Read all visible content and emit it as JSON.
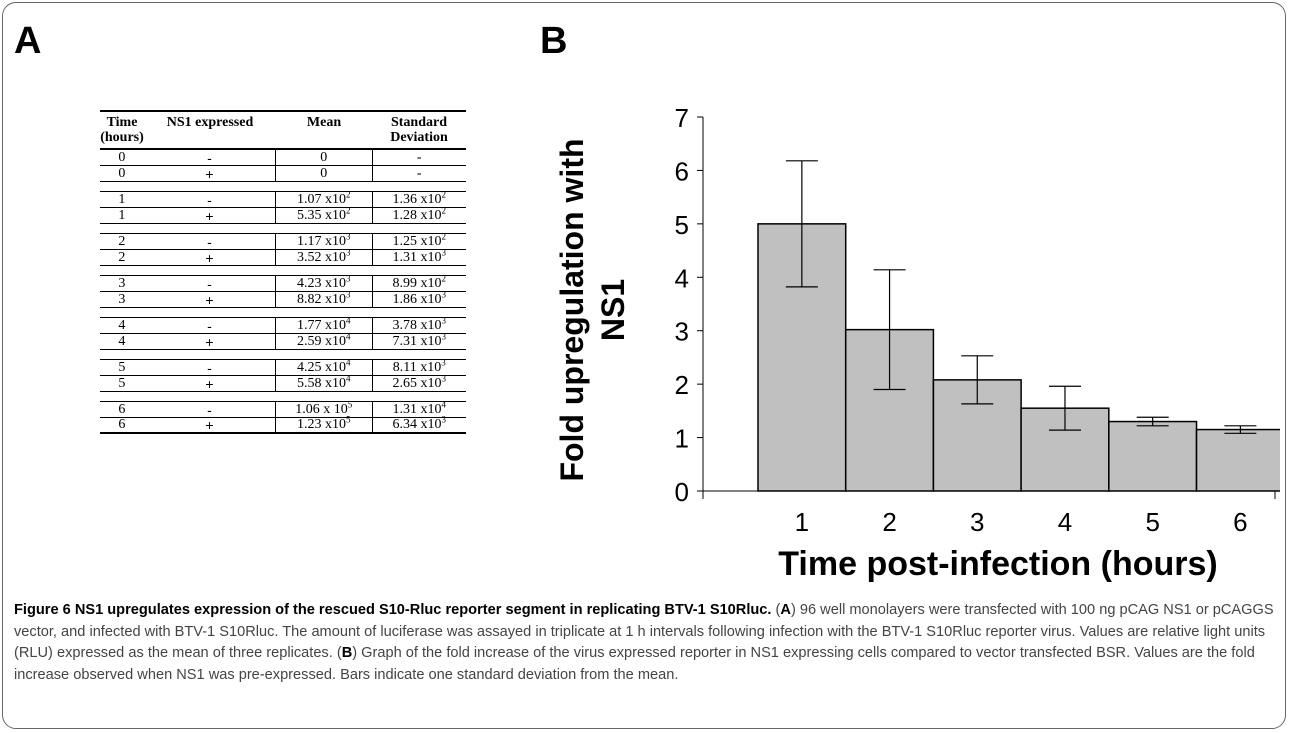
{
  "panel_a": {
    "letter": "A",
    "headers": {
      "time": "Time",
      "time_unit": "(hours)",
      "ns1": "NS1 expressed",
      "mean": "Mean",
      "sd_line1": "Standard",
      "sd_line2": "Deviation"
    },
    "groups": [
      [
        {
          "time": "0",
          "ns1": "-",
          "mean_base": "0",
          "mean_sep": "",
          "mean_exp": "",
          "sd_base": "-",
          "sd_sep": "",
          "sd_exp": ""
        },
        {
          "time": "0",
          "ns1": "+",
          "mean_base": "0",
          "mean_sep": "",
          "mean_exp": "",
          "sd_base": "-",
          "sd_sep": "",
          "sd_exp": ""
        }
      ],
      [
        {
          "time": "1",
          "ns1": "-",
          "mean_base": "1.07",
          "mean_sep": " x10",
          "mean_exp": "2",
          "sd_base": "1.36",
          "sd_sep": " x10",
          "sd_exp": "2"
        },
        {
          "time": "1",
          "ns1": "+",
          "mean_base": "5.35",
          "mean_sep": " x10",
          "mean_exp": "2",
          "sd_base": "1.28",
          "sd_sep": " x10",
          "sd_exp": "2"
        }
      ],
      [
        {
          "time": "2",
          "ns1": "-",
          "mean_base": "1.17",
          "mean_sep": " x10",
          "mean_exp": "3",
          "sd_base": "1.25",
          "sd_sep": " x10",
          "sd_exp": "2"
        },
        {
          "time": "2",
          "ns1": "+",
          "mean_base": "3.52",
          "mean_sep": " x10",
          "mean_exp": "3",
          "sd_base": "1.31",
          "sd_sep": " x10",
          "sd_exp": "3"
        }
      ],
      [
        {
          "time": "3",
          "ns1": "-",
          "mean_base": "4.23",
          "mean_sep": " x10",
          "mean_exp": "3",
          "sd_base": "8.99",
          "sd_sep": " x10",
          "sd_exp": "2"
        },
        {
          "time": "3",
          "ns1": "+",
          "mean_base": "8.82",
          "mean_sep": " x10",
          "mean_exp": "3",
          "sd_base": "1.86",
          "sd_sep": " x10",
          "sd_exp": "3"
        }
      ],
      [
        {
          "time": "4",
          "ns1": "-",
          "mean_base": "1.77",
          "mean_sep": " x10",
          "mean_exp": "4",
          "sd_base": "3.78",
          "sd_sep": " x10",
          "sd_exp": "3"
        },
        {
          "time": "4",
          "ns1": "+",
          "mean_base": "2.59",
          "mean_sep": " x10",
          "mean_exp": "4",
          "sd_base": "7.31",
          "sd_sep": " x10",
          "sd_exp": "3"
        }
      ],
      [
        {
          "time": "5",
          "ns1": "-",
          "mean_base": "4.25",
          "mean_sep": " x10",
          "mean_exp": "4",
          "sd_base": "8.11",
          "sd_sep": " x10",
          "sd_exp": "3"
        },
        {
          "time": "5",
          "ns1": "+",
          "mean_base": "5.58",
          "mean_sep": " x10",
          "mean_exp": "4",
          "sd_base": "2.65",
          "sd_sep": " x10",
          "sd_exp": "3"
        }
      ],
      [
        {
          "time": "6",
          "ns1": "-",
          "mean_base": "1.06",
          "mean_sep": " x 10",
          "mean_exp": "5",
          "sd_base": "1.31",
          "sd_sep": " x10",
          "sd_exp": "4"
        },
        {
          "time": "6",
          "ns1": "+",
          "mean_base": "1.23",
          "mean_sep": " x10",
          "mean_exp": "5",
          "sd_base": "6.34",
          "sd_sep": " x10",
          "sd_exp": "3"
        }
      ]
    ]
  },
  "panel_b": {
    "letter": "B"
  },
  "chart_data": {
    "type": "bar",
    "categories": [
      "1",
      "2",
      "3",
      "4",
      "5",
      "6"
    ],
    "values": [
      5.0,
      3.02,
      2.08,
      1.55,
      1.3,
      1.15
    ],
    "error": [
      1.18,
      1.12,
      0.45,
      0.41,
      0.08,
      0.07
    ],
    "ylim": [
      0,
      7
    ],
    "yticks": [
      "0",
      "1",
      "2",
      "3",
      "4",
      "5",
      "6",
      "7"
    ],
    "xlabel": "Time post-infection (hours)",
    "ylabel_line1": "Fold upregulation with",
    "ylabel_line2": "NS1",
    "grid": false,
    "bar_color": "#c0c0c0"
  },
  "caption": {
    "figure_label": "Figure 6",
    "title": "NS1 upregulates expression of the rescued S10-Rluc reporter segment in replicating BTV-1 S10Rluc.",
    "open_a": "(",
    "a_letter": "A",
    "text_a": ") 96 well monolayers were transfected with 100 ng pCAG NS1 or pCAGGS vector, and infected with BTV-1 S10Rluc. The amount of luciferase was assayed in triplicate at 1 h intervals following infection with the BTV-1 S10Rluc reporter virus. Values are relative light units (RLU) expressed as the mean of three replicates. (",
    "b_letter": "B",
    "text_b": ") Graph of the fold increase of the virus expressed reporter in NS1 expressing cells compared to vector transfected BSR. Values are the fold increase observed when NS1 was pre-expressed. Bars indicate one standard deviation from the mean."
  }
}
